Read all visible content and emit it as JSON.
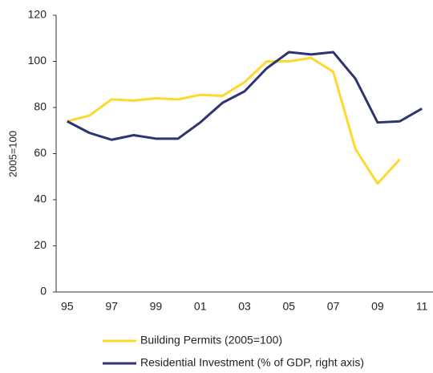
{
  "chart_data": {
    "type": "line",
    "y_label": "2005=100",
    "categories": [
      "95",
      null,
      "97",
      null,
      "99",
      null,
      "01",
      null,
      "03",
      null,
      "05",
      null,
      "07",
      null,
      "09",
      null,
      "11"
    ],
    "series": [
      {
        "name": "Building Permits (2005=100)",
        "color": "#ffd82e",
        "values": [
          74,
          76.5,
          83.5,
          83,
          84,
          83.5,
          85.5,
          85,
          91,
          100,
          100,
          101.5,
          95.5,
          62,
          47,
          57.5,
          null
        ]
      },
      {
        "name": "Residential Investment (% of GDP, right axis)",
        "color": "#2e3470",
        "values": [
          74,
          69,
          66,
          68,
          66.5,
          66.5,
          73.5,
          82,
          87,
          97,
          104,
          103,
          104,
          92.5,
          73.5,
          74,
          79.5
        ]
      }
    ],
    "ylim": [
      0,
      120
    ],
    "yticks": [
      0,
      20,
      40,
      60,
      80,
      100,
      120
    ],
    "grid": false
  }
}
